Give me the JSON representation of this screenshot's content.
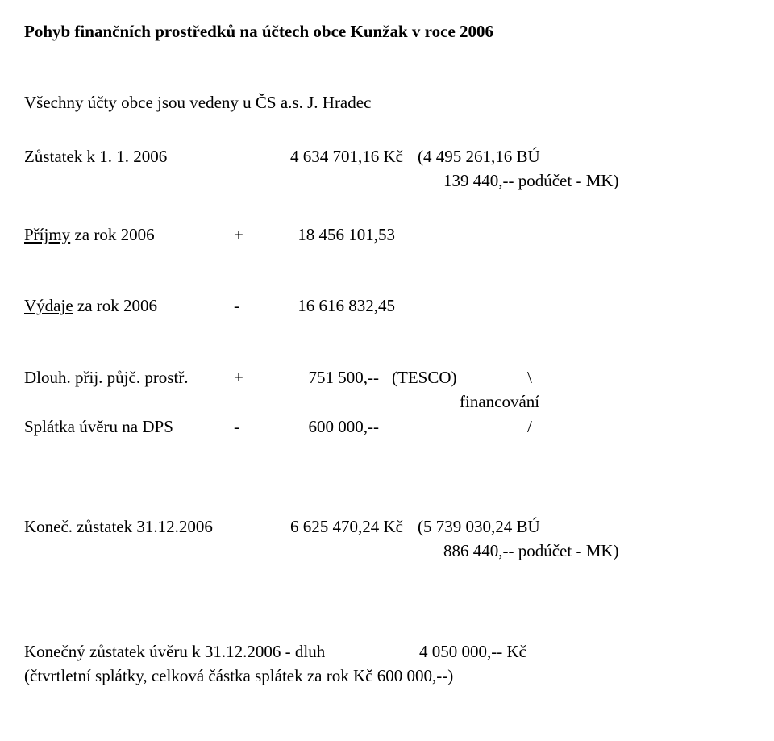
{
  "title": "Pohyb finančních prostředků na účtech obce Kunžak v roce 2006",
  "intro": "Všechny účty obce jsou vedeny u ČS a.s. J. Hradec",
  "opening": {
    "label": "Zůstatek k 1. 1. 2006",
    "amount": "4 634 701,16 Kč",
    "breakdown1": "(4 495 261,16 BÚ",
    "breakdown2": " 139 440,-- podúčet - MK)"
  },
  "income": {
    "label_u": "Příjmy",
    "label_rest": " za rok 2006",
    "sign": "+",
    "amount": "18 456 101,53"
  },
  "expense": {
    "label_u": "Výdaje",
    "label_rest": " za rok 2006",
    "sign": "-",
    "amount": "16 616 832,45"
  },
  "loan_recv": {
    "label": "Dlouh. přij. půjč. prostř.",
    "sign": "+",
    "amount": "751 500,--",
    "tesco": "(TESCO)",
    "slash": "\\"
  },
  "financing_label": "financování",
  "loan_pay": {
    "label": "Splátka úvěru na DPS",
    "sign": "-",
    "amount": "600 000,--",
    "slash": "/"
  },
  "closing": {
    "label": "Koneč. zůstatek 31.12.2006",
    "amount": "6 625 470,24 Kč",
    "breakdown1": "(5 739 030,24 BÚ",
    "breakdown2": " 886 440,-- podúčet - MK)"
  },
  "final_loan": {
    "label": "Konečný zůstatek úvěru k 31.12.2006 - dluh",
    "value": "4 050 000,-- Kč"
  },
  "note": "(čtvrtletní splátky, celková částka splátek za rok Kč 600 000,--)"
}
